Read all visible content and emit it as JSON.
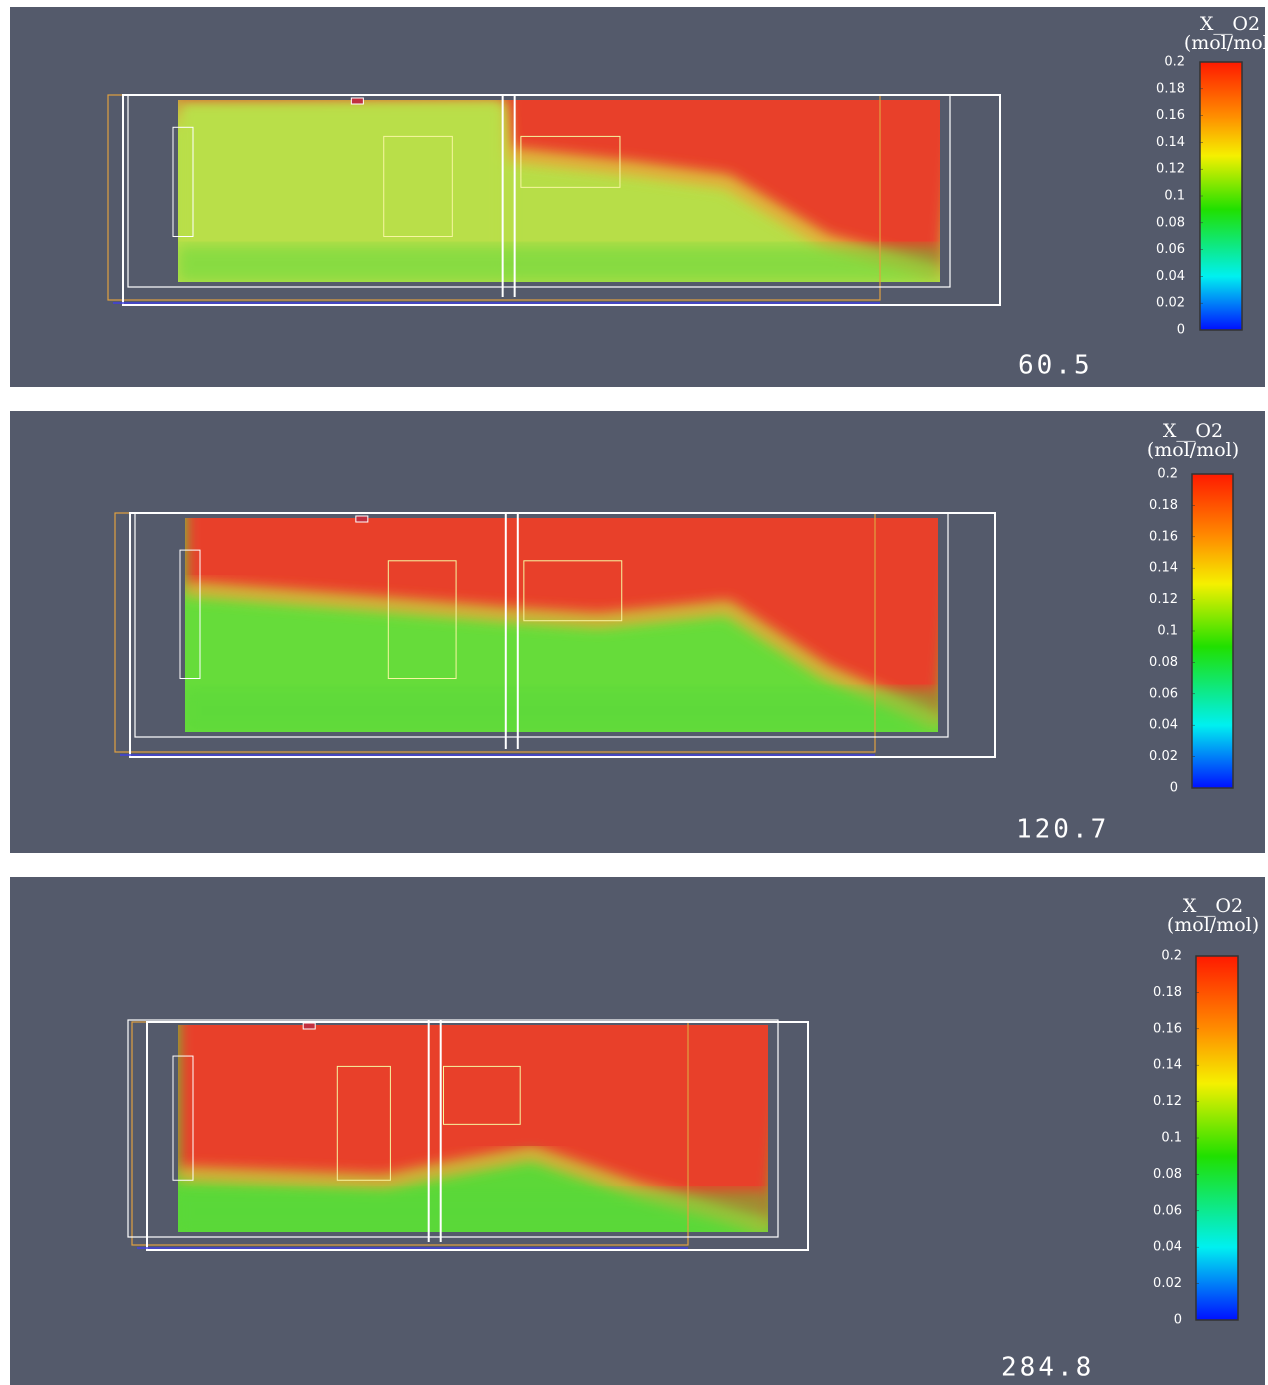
{
  "panels": [
    {
      "colorbar": {
        "title": "X__O2",
        "unit": "(mol/mol)",
        "ticks": [
          0.2,
          0.18,
          0.16,
          0.14,
          0.12,
          0.1,
          0.08,
          0.06,
          0.04,
          0.02,
          0
        ]
      },
      "time": 60.5
    },
    {
      "colorbar": {
        "title": "X__O2",
        "unit": "(mol/mol)",
        "ticks": [
          0.2,
          0.18,
          0.16,
          0.14,
          0.12,
          0.1,
          0.08,
          0.06,
          0.04,
          0.02,
          0
        ]
      },
      "time": 120.7
    },
    {
      "colorbar": {
        "title": "X__O2",
        "unit": "(mol/mol)",
        "ticks": [
          0.2,
          0.18,
          0.16,
          0.14,
          0.12,
          0.1,
          0.08,
          0.06,
          0.04,
          0.02,
          0
        ]
      },
      "time": 284.8
    }
  ]
}
